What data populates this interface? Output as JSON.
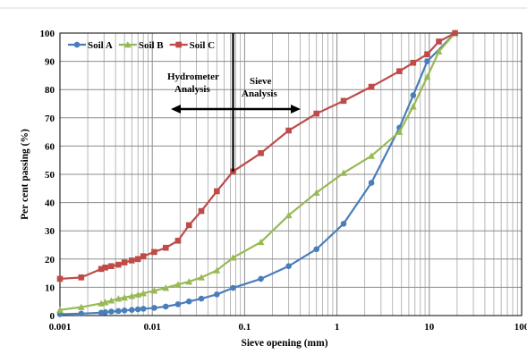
{
  "chart_data": {
    "type": "line",
    "title": "",
    "xlabel": "Sieve opening (mm)",
    "ylabel": "Per cent passing (%)",
    "x_scale": "log",
    "xlim": [
      0.001,
      100
    ],
    "ylim": [
      0,
      100
    ],
    "x_tick_labels": [
      "0.001",
      "0.01",
      "0.1",
      "1",
      "10",
      "100"
    ],
    "y_tick_labels": [
      "0",
      "10",
      "20",
      "30",
      "40",
      "50",
      "60",
      "70",
      "80",
      "90",
      "100"
    ],
    "grid": true,
    "legend_position": "top-left",
    "series": [
      {
        "name": "Soil A",
        "color": "#4a7ebb",
        "marker": "circle",
        "points": [
          [
            0.001,
            0.5
          ],
          [
            0.0017,
            0.7
          ],
          [
            0.0028,
            1.0
          ],
          [
            0.0031,
            1.2
          ],
          [
            0.0036,
            1.4
          ],
          [
            0.0043,
            1.6
          ],
          [
            0.005,
            1.8
          ],
          [
            0.006,
            2.0
          ],
          [
            0.007,
            2.2
          ],
          [
            0.008,
            2.4
          ],
          [
            0.0105,
            2.7
          ],
          [
            0.014,
            3.2
          ],
          [
            0.019,
            4.0
          ],
          [
            0.025,
            5.0
          ],
          [
            0.034,
            6.0
          ],
          [
            0.05,
            7.5
          ],
          [
            0.075,
            9.8
          ],
          [
            0.15,
            13.0
          ],
          [
            0.3,
            17.5
          ],
          [
            0.6,
            23.5
          ],
          [
            1.18,
            32.5
          ],
          [
            2.36,
            47.0
          ],
          [
            4.75,
            66.5
          ],
          [
            6.7,
            78.0
          ],
          [
            9.5,
            90.0
          ],
          [
            19.0,
            100.0
          ]
        ]
      },
      {
        "name": "Soil B",
        "color": "#98b954",
        "marker": "triangle",
        "points": [
          [
            0.001,
            2.0
          ],
          [
            0.0017,
            3.0
          ],
          [
            0.0028,
            4.3
          ],
          [
            0.0031,
            4.7
          ],
          [
            0.0036,
            5.3
          ],
          [
            0.0043,
            6.0
          ],
          [
            0.005,
            6.4
          ],
          [
            0.006,
            6.9
          ],
          [
            0.007,
            7.4
          ],
          [
            0.008,
            7.9
          ],
          [
            0.0105,
            8.8
          ],
          [
            0.014,
            9.8
          ],
          [
            0.019,
            11.0
          ],
          [
            0.025,
            12.0
          ],
          [
            0.034,
            13.5
          ],
          [
            0.05,
            16.0
          ],
          [
            0.075,
            20.5
          ],
          [
            0.15,
            26.0
          ],
          [
            0.3,
            35.5
          ],
          [
            0.6,
            43.5
          ],
          [
            1.18,
            50.5
          ],
          [
            2.36,
            56.5
          ],
          [
            4.75,
            65.0
          ],
          [
            6.7,
            74.0
          ],
          [
            9.5,
            84.5
          ],
          [
            12.7,
            93.5
          ],
          [
            19.0,
            100.0
          ]
        ]
      },
      {
        "name": "Soil C",
        "color": "#be4b48",
        "marker": "square",
        "points": [
          [
            0.001,
            13.0
          ],
          [
            0.0017,
            13.5
          ],
          [
            0.0028,
            16.5
          ],
          [
            0.0031,
            17.0
          ],
          [
            0.0036,
            17.5
          ],
          [
            0.0043,
            18.0
          ],
          [
            0.005,
            18.8
          ],
          [
            0.006,
            19.5
          ],
          [
            0.007,
            20.0
          ],
          [
            0.008,
            21.0
          ],
          [
            0.0105,
            22.5
          ],
          [
            0.014,
            24.0
          ],
          [
            0.019,
            26.5
          ],
          [
            0.025,
            32.0
          ],
          [
            0.034,
            37.0
          ],
          [
            0.05,
            44.0
          ],
          [
            0.075,
            51.0
          ],
          [
            0.15,
            57.5
          ],
          [
            0.3,
            65.5
          ],
          [
            0.6,
            71.5
          ],
          [
            1.18,
            76.0
          ],
          [
            2.36,
            81.0
          ],
          [
            4.75,
            86.5
          ],
          [
            6.7,
            89.5
          ],
          [
            9.5,
            92.5
          ],
          [
            12.7,
            97.0
          ],
          [
            19.0,
            100.0
          ]
        ]
      }
    ],
    "divider_x": 0.075,
    "annotations": {
      "hydrometer_line1": "Hydrometer",
      "hydrometer_line2": "Analysis",
      "sieve_line1": "Sieve",
      "sieve_line2": "Analysis"
    }
  }
}
